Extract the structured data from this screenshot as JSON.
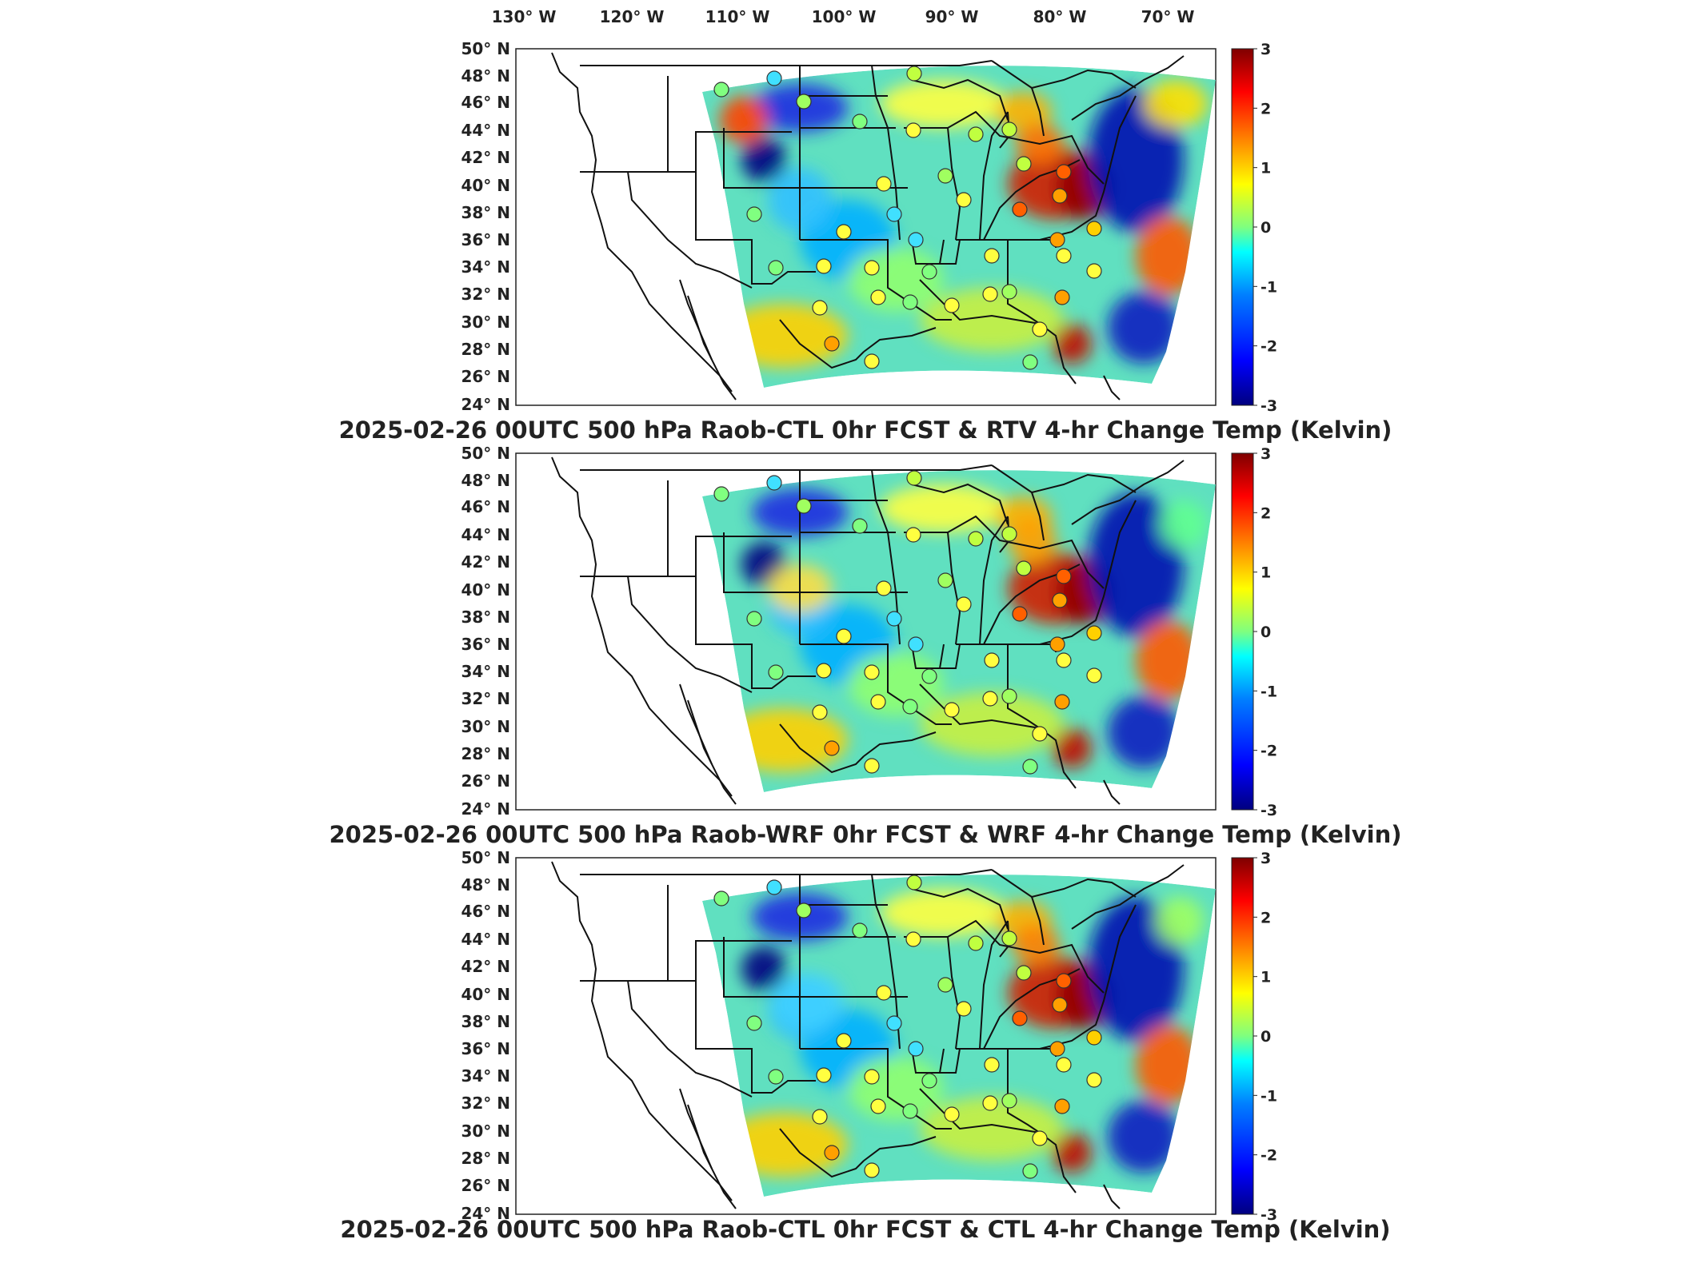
{
  "lon_labels": [
    "130° W",
    "120° W",
    "110° W",
    "100° W",
    "90° W",
    "80° W",
    "70° W"
  ],
  "lat_labels": [
    "50° N",
    "48° N",
    "46° N",
    "44° N",
    "42° N",
    "40° N",
    "38° N",
    "36° N",
    "34° N",
    "32° N",
    "30° N",
    "28° N",
    "26° N",
    "24° N"
  ],
  "colorbar": {
    "ticks": [
      "3",
      "2",
      "1",
      "0",
      "-1",
      "-2",
      "-3"
    ],
    "colormap": [
      "#00007f",
      "#0000ff",
      "#007fff",
      "#00ffff",
      "#7fff7f",
      "#ffff00",
      "#ff7f00",
      "#ff0000",
      "#7f0000"
    ]
  },
  "panels": [
    {
      "title": "2025-02-26 00UTC 500 hPa Raob-CTL 0hr FCST & RTV 4-hr Change Temp (Kelvin)"
    },
    {
      "title": "2025-02-26 00UTC 500 hPa Raob-WRF 0hr FCST & WRF 4-hr Change Temp (Kelvin)"
    },
    {
      "title": "2025-02-26 00UTC 500 hPa Raob-CTL 0hr FCST & CTL 4-hr Change Temp (Kelvin)"
    }
  ]
}
